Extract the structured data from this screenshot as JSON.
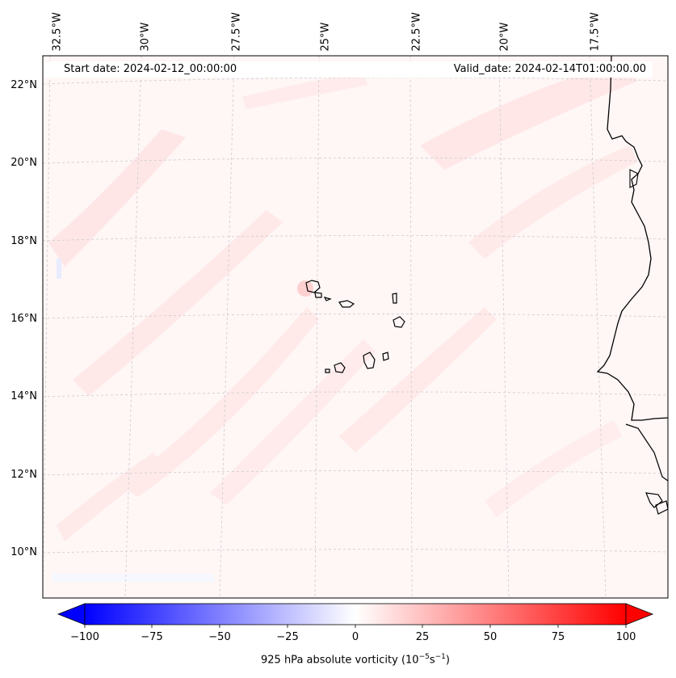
{
  "map": {
    "longitude_labels": [
      "32.5°W",
      "30°W",
      "27.5°W",
      "25°W",
      "22.5°W",
      "20°W",
      "17.5°W"
    ],
    "latitude_labels": [
      "22°N",
      "20°N",
      "18°N",
      "16°N",
      "14°N",
      "12°N",
      "10°N"
    ],
    "start_date": "Start date: 2024-02-12_00:00:00",
    "valid_date": "Valid_date: 2024-02-14T01:00:00.00",
    "features": [
      "coastline-west-africa",
      "cape-verde-islands"
    ]
  },
  "colorbar": {
    "ticks": [
      "−100",
      "−75",
      "−50",
      "−25",
      "0",
      "25",
      "50",
      "75",
      "100"
    ],
    "label": "925 hPa absolute vorticity (10",
    "label_exp1": "−5",
    "label_mid": "s",
    "label_exp2": "−1",
    "label_end": ")",
    "min_color": "#0000ff",
    "mid_color": "#ffffff",
    "max_color": "#ff0000"
  }
}
